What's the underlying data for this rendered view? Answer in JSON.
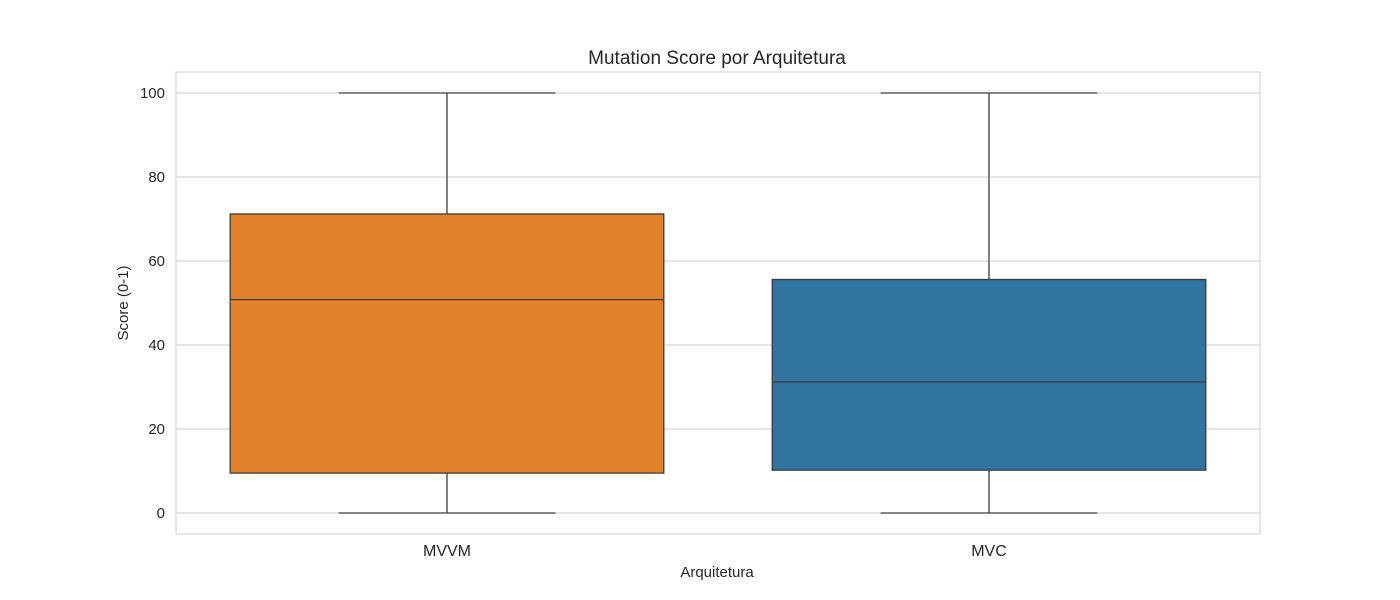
{
  "chart_data": {
    "type": "box",
    "title": "Mutation Score por Arquitetura",
    "xlabel": "Arquitetura",
    "ylabel": "Score (0-1)",
    "ylim": [
      -5,
      105
    ],
    "yticks": [
      0,
      20,
      40,
      60,
      80,
      100
    ],
    "grid": true,
    "categories": [
      "MVVM",
      "MVC"
    ],
    "boxes": [
      {
        "category": "MVVM",
        "min": 0,
        "q1": 9.5,
        "median": 50.8,
        "q3": 71.2,
        "max": 100,
        "color": "#e1812c"
      },
      {
        "category": "MVC",
        "min": 0,
        "q1": 10.2,
        "median": 31.2,
        "q3": 55.6,
        "max": 100,
        "color": "#3274a1"
      }
    ]
  }
}
